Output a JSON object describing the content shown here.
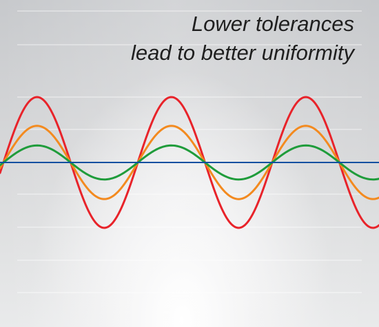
{
  "headline": {
    "line1": "Lower tolerances",
    "line2": "lead to better uniformity"
  },
  "chart_data": {
    "type": "line",
    "title": "Lower tolerances lead to better uniformity",
    "xlabel": "",
    "ylabel": "",
    "grid": true,
    "period_cycles_visible": 3,
    "series": [
      {
        "name": "",
        "color": "#e8232a",
        "relative_amplitude": 1.0
      },
      {
        "name": "",
        "color": "#f38a1f",
        "relative_amplitude": 0.56
      },
      {
        "name": "",
        "color": "#1f9c3b",
        "relative_amplitude": 0.26
      },
      {
        "name": "",
        "color": "#0f4fa0",
        "relative_amplitude": 0.0
      }
    ]
  }
}
